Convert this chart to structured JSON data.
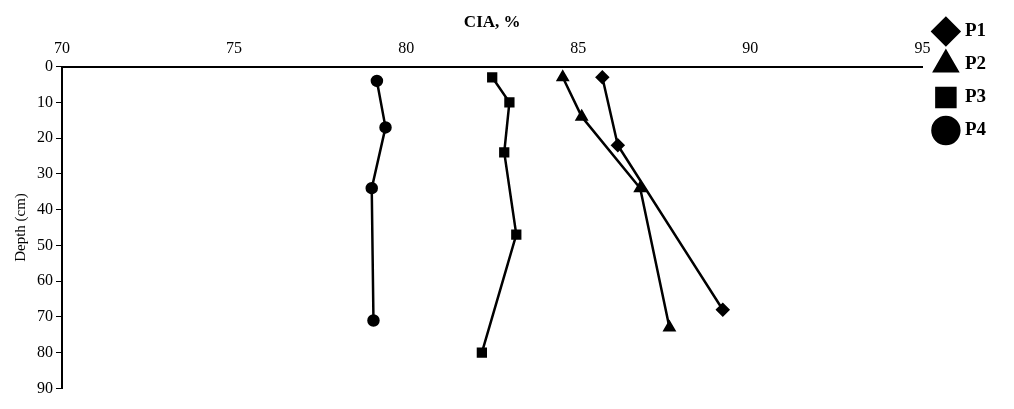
{
  "chart_data": {
    "type": "line",
    "xlabel": "CIA, %",
    "ylabel": "Depth (cm)",
    "xlim": [
      70,
      95
    ],
    "xticks": [
      70,
      75,
      80,
      85,
      90,
      95
    ],
    "ylim": [
      90,
      0
    ],
    "yticks": [
      0,
      10,
      20,
      30,
      40,
      50,
      60,
      70,
      80,
      90
    ],
    "grid": false,
    "legend": "right",
    "line_style": "solid",
    "series": [
      {
        "name": "P1",
        "color": "#000000",
        "marker": "diamond",
        "x": [
          85.7,
          86.15,
          89.2
        ],
        "values": [
          3,
          22,
          68
        ]
      },
      {
        "name": "P2",
        "color": "#000000",
        "marker": "triangle",
        "x": [
          84.55,
          85.1,
          86.8,
          87.65
        ],
        "values": [
          3,
          14,
          34,
          73
        ]
      },
      {
        "name": "P3",
        "color": "#000000",
        "marker": "square",
        "x": [
          82.5,
          83.0,
          82.85,
          83.2,
          82.2
        ],
        "values": [
          3,
          10,
          24,
          47,
          80
        ]
      },
      {
        "name": "P4",
        "color": "#000000",
        "marker": "circle",
        "x": [
          79.15,
          79.4,
          79.0,
          79.05
        ],
        "values": [
          4,
          17,
          34,
          71
        ]
      }
    ]
  }
}
